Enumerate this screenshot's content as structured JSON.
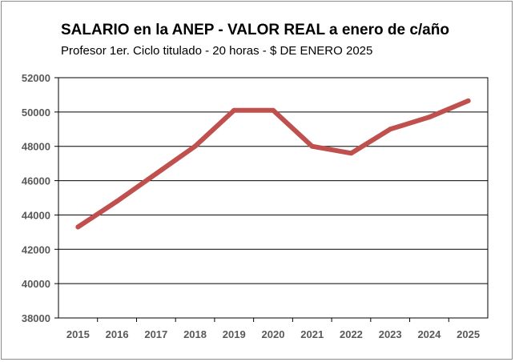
{
  "chart_data": {
    "type": "line",
    "title": "SALARIO en la ANEP - VALOR REAL a enero de c/año",
    "subtitle": "Profesor 1er. Ciclo titulado - 20 horas - $ DE ENERO 2025",
    "xlabel": "",
    "ylabel": "",
    "categories": [
      "2015",
      "2016",
      "2017",
      "2018",
      "2019",
      "2020",
      "2021",
      "2022",
      "2023",
      "2024",
      "2025"
    ],
    "series": [
      {
        "values": [
          43300,
          44800,
          46400,
          48000,
          50100,
          50100,
          48000,
          47600,
          49000,
          49700,
          50650
        ]
      }
    ],
    "ylim": [
      38000,
      52000
    ],
    "yticks": [
      38000,
      40000,
      42000,
      44000,
      46000,
      48000,
      50000,
      52000
    ],
    "grid": "horizontal",
    "line_color": "#c0504d"
  }
}
